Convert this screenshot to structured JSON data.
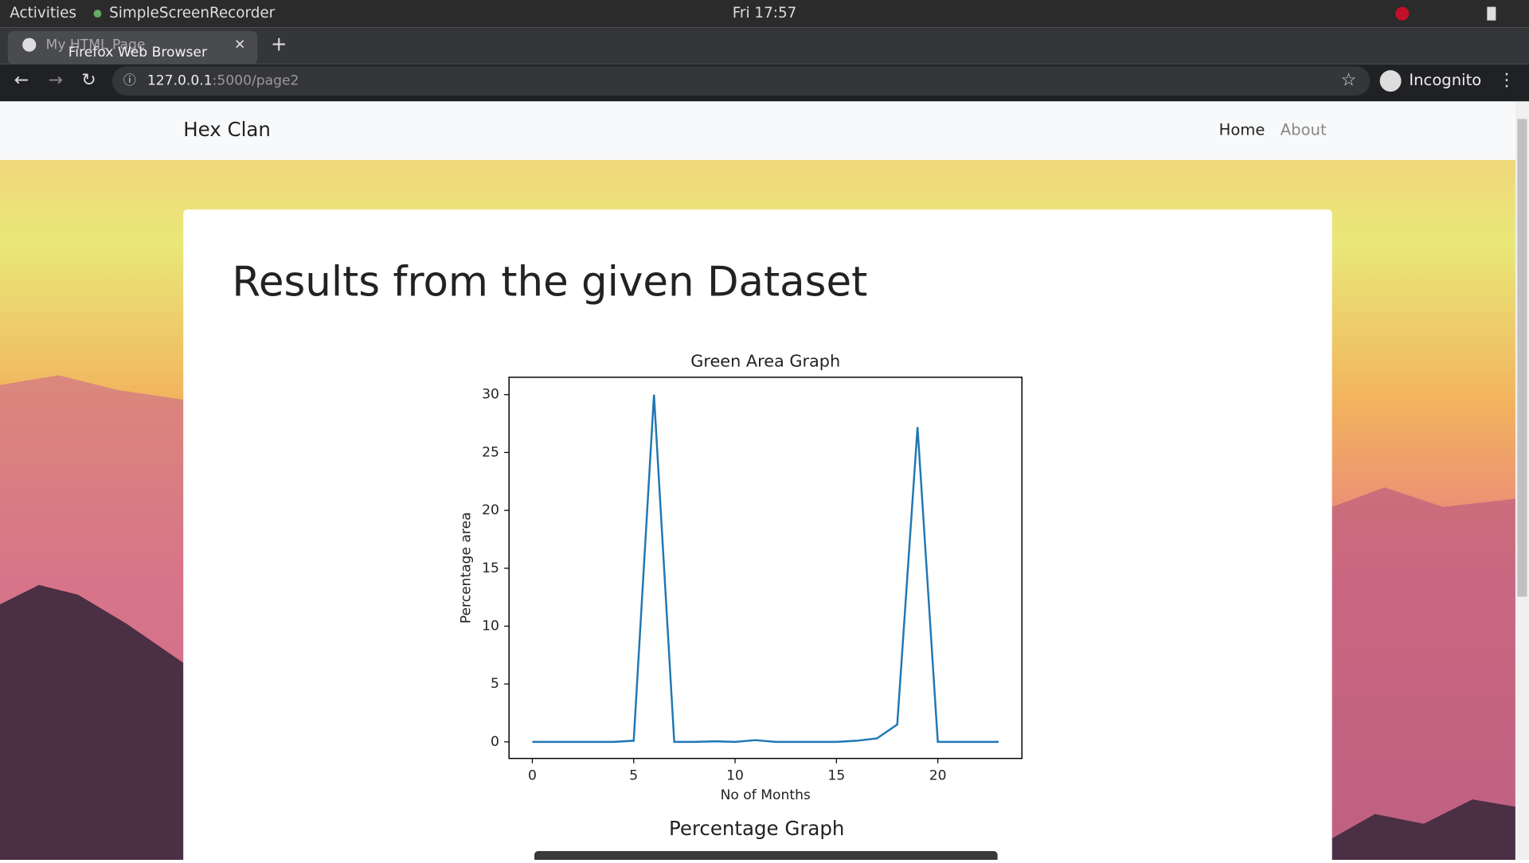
{
  "system_bar": {
    "activities": "Activities",
    "app": "SimpleScreenRecorder",
    "clock": "Fri 17:57"
  },
  "browser": {
    "tab_title": "My HTML Page",
    "tooltip": "Firefox Web Browser",
    "url_host": "127.0.0.1",
    "url_path": ":5000/page2",
    "mode": "Incognito"
  },
  "page": {
    "brand": "Hex Clan",
    "nav": [
      "Home",
      "About"
    ],
    "heading": "Results from the given Dataset",
    "next_caption": "Percentage Graph"
  },
  "chart_data": {
    "type": "line",
    "title": "Green Area Graph",
    "x_label": "No of Months",
    "y_label": "Percentage area",
    "x": [
      0,
      1,
      2,
      3,
      4,
      5,
      6,
      7,
      8,
      9,
      10,
      11,
      12,
      13,
      14,
      15,
      16,
      17,
      18,
      19,
      20,
      21,
      22,
      23
    ],
    "values": [
      0,
      0,
      0,
      0,
      0,
      0.1,
      30,
      0,
      0,
      0.05,
      0,
      0.15,
      0,
      0,
      0,
      0,
      0.1,
      0.3,
      1.5,
      27.2,
      0,
      0,
      0,
      0
    ],
    "color": "#1f77b4",
    "xlim": [
      -1.15,
      24.15
    ],
    "ylim": [
      -1.43,
      31.5
    ],
    "xticks": [
      0,
      5,
      10,
      15,
      20
    ],
    "yticks": [
      0,
      5,
      10,
      15,
      20,
      25,
      30
    ],
    "grid": false
  }
}
